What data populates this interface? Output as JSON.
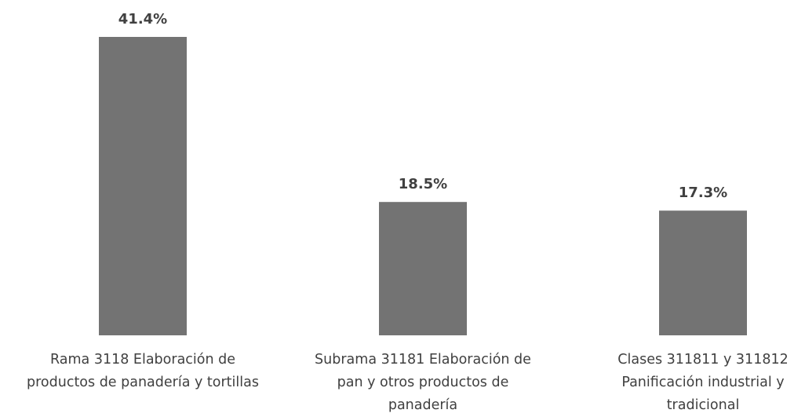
{
  "chart_data": {
    "type": "bar",
    "categories": [
      [
        "Rama 3118  Elaboración de",
        "productos de panadería y tortillas"
      ],
      [
        "Subrama 31181 Elaboración de",
        "pan y otros productos de",
        "panadería"
      ],
      [
        "Clases 311811 y 311812",
        "Panificación industrial y",
        "tradicional"
      ]
    ],
    "values": [
      41.4,
      18.5,
      17.3
    ],
    "data_labels": [
      "41.4%",
      "18.5%",
      "17.3%"
    ],
    "bar_color": "#737373",
    "grid": false,
    "legend": "none"
  }
}
